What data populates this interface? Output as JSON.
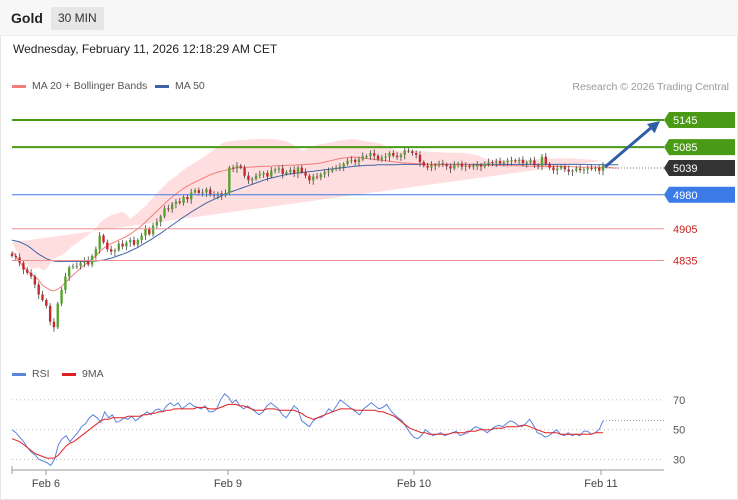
{
  "header": {
    "symbol": "Gold",
    "interval": "30 MIN"
  },
  "timestamp": "Wednesday, February 11, 2026 12:18:29 AM CET",
  "legend": {
    "ma20_label": "MA 20 + Bollinger Bands",
    "ma50_label": "MA 50",
    "credit": "Research © 2026 Trading Central",
    "rsi_label": "RSI",
    "rsi_ma_label": "9MA"
  },
  "colors": {
    "bull": "#56a22e",
    "bear": "#c8262d",
    "ma20": "#f47c7c",
    "ma50": "#3e64a8",
    "band": "#fdd3d3",
    "resistance": "#4a9a16",
    "support": "#3b7be8",
    "support_red": "#f08f8f",
    "current": "#333333",
    "rsi": "#5b84e0",
    "rsi_ma": "#e02020",
    "arrow": "#2f5fa6"
  },
  "chart_data": [
    {
      "type": "candlestick",
      "title": "",
      "x_ticks": [
        "Feb 6",
        "Feb 9",
        "Feb 10",
        "Feb 11"
      ],
      "ylim": [
        4620,
        5200
      ],
      "levels": [
        {
          "label": "5145",
          "value": 5145,
          "kind": "resistance"
        },
        {
          "label": "5085",
          "value": 5085,
          "kind": "resistance"
        },
        {
          "label": "5039",
          "value": 5039,
          "kind": "current"
        },
        {
          "label": "4980",
          "value": 4980,
          "kind": "support"
        },
        {
          "label": "4905",
          "value": 4905,
          "kind": "support_red"
        },
        {
          "label": "4835",
          "value": 4835,
          "kind": "support_red"
        }
      ],
      "forecast_arrow": {
        "from": 5039,
        "to": 5145
      },
      "close": [
        4845,
        4842,
        4830,
        4815,
        4808,
        4800,
        4782,
        4760,
        4748,
        4735,
        4700,
        4688,
        4740,
        4770,
        4800,
        4820,
        4822,
        4823,
        4830,
        4836,
        4826,
        4845,
        4860,
        4890,
        4875,
        4860,
        4855,
        4858,
        4872,
        4866,
        4875,
        4880,
        4870,
        4880,
        4890,
        4905,
        4893,
        4912,
        4920,
        4932,
        4950,
        4948,
        4960,
        4965,
        4962,
        4975,
        4970,
        4985,
        4990,
        4984,
        4985,
        4992,
        4980,
        4978,
        4983,
        4978,
        4984,
        5040,
        5038,
        5044,
        5040,
        5022,
        5012,
        5015,
        5022,
        5025,
        5028,
        5020,
        5033,
        5036,
        5038,
        5026,
        5030,
        5035,
        5027,
        5040,
        5030,
        5022,
        5012,
        5020,
        5018,
        5025,
        5030,
        5032,
        5038,
        5040,
        5042,
        5048,
        5055,
        5057,
        5052,
        5058,
        5065,
        5065,
        5072,
        5066,
        5058,
        5062,
        5064,
        5072,
        5066,
        5063,
        5068,
        5078,
        5076,
        5072,
        5068,
        5052,
        5044,
        5040,
        5046,
        5044,
        5049,
        5047,
        5043,
        5038,
        5046,
        5049,
        5042,
        5044,
        5041,
        5043,
        5046,
        5042,
        5048,
        5052,
        5051,
        5054,
        5049,
        5052,
        5055,
        5056,
        5054,
        5057,
        5050,
        5051,
        5056,
        5045,
        5044,
        5064,
        5048,
        5040,
        5034,
        5038,
        5042,
        5036,
        5031,
        5033,
        5038,
        5034,
        5036,
        5039,
        5037,
        5039,
        5033,
        5044
      ],
      "ma20": [
        4855,
        4845,
        4832,
        4822,
        4812,
        4805,
        4800,
        4792,
        4780,
        4775,
        4770,
        4768,
        4772,
        4778,
        4786,
        4795,
        4803,
        4810,
        4818,
        4825,
        4832,
        4838,
        4846,
        4855,
        4862,
        4868,
        4872,
        4876,
        4880,
        4884,
        4888,
        4893,
        4899,
        4905,
        4912,
        4920,
        4928,
        4936,
        4944,
        4952,
        4960,
        4968,
        4975,
        4982,
        4988,
        4994,
        4999,
        5004,
        5008,
        5012,
        5016,
        5020,
        5024,
        5027,
        5030,
        5032,
        5034,
        5036,
        5038,
        5040,
        5040,
        5040,
        5041,
        5041,
        5042,
        5042,
        5043,
        5043,
        5043,
        5044,
        5044,
        5044,
        5045,
        5045,
        5045,
        5046,
        5046,
        5047,
        5047,
        5048,
        5049,
        5050,
        5052,
        5054,
        5056,
        5058,
        5060,
        5061,
        5062,
        5063,
        5063,
        5062,
        5061,
        5060,
        5059,
        5058,
        5057,
        5056,
        5055,
        5054,
        5053,
        5052,
        5051,
        5050,
        5050,
        5049,
        5049,
        5048,
        5048,
        5047,
        5047,
        5047,
        5047,
        5046,
        5046,
        5046,
        5046,
        5046,
        5046,
        5046,
        5046,
        5045,
        5045,
        5045,
        5045,
        5045,
        5045,
        5045,
        5044,
        5044,
        5044,
        5044,
        5044,
        5044,
        5044,
        5043,
        5043,
        5043,
        5043,
        5043,
        5043,
        5042,
        5042,
        5042,
        5042,
        5042,
        5042,
        5042,
        5041,
        5041,
        5041,
        5041,
        5041,
        5041,
        5040,
        5040,
        5040,
        5040,
        5039,
        5039
      ],
      "ma50": [
        4880,
        4878,
        4876,
        4872,
        4868,
        4862,
        4855,
        4849,
        4844,
        4839,
        4836,
        4834,
        4833,
        4833,
        4833,
        4833,
        4833,
        4833,
        4833,
        4833,
        4833,
        4834,
        4834,
        4835,
        4836,
        4838,
        4840,
        4843,
        4846,
        4849,
        4852,
        4856,
        4860,
        4864,
        4869,
        4874,
        4879,
        4884,
        4890,
        4895,
        4901,
        4907,
        4913,
        4919,
        4925,
        4931,
        4936,
        4942,
        4947,
        4952,
        4957,
        4962,
        4966,
        4970,
        4974,
        4978,
        4982,
        4985,
        4988,
        4991,
        4994,
        4997,
        5000,
        5003,
        5006,
        5009,
        5012,
        5015,
        5017,
        5019,
        5021,
        5023,
        5025,
        5026,
        5027,
        5028,
        5029,
        5030,
        5031,
        5032,
        5033,
        5034,
        5035,
        5036,
        5037,
        5038,
        5039,
        5040,
        5041,
        5042,
        5043,
        5044,
        5044,
        5045,
        5045,
        5045,
        5046,
        5046,
        5046,
        5046,
        5046,
        5046,
        5047,
        5047,
        5047,
        5047,
        5047,
        5047,
        5047,
        5047,
        5047,
        5047,
        5047,
        5047,
        5047,
        5047,
        5047,
        5047,
        5047,
        5047,
        5047,
        5047,
        5047,
        5047,
        5047,
        5047,
        5047,
        5047,
        5047,
        5047,
        5047,
        5047,
        5047,
        5047,
        5047,
        5047,
        5047,
        5047,
        5047,
        5047,
        5047,
        5047,
        5047,
        5047,
        5047,
        5047,
        5047,
        5047,
        5047,
        5047,
        5047,
        5047,
        5046,
        5046,
        5046,
        5046,
        5046,
        5046,
        5046,
        5046
      ]
    },
    {
      "type": "line",
      "title": "",
      "series": [
        {
          "name": "RSI"
        },
        {
          "name": "9MA"
        }
      ],
      "ylim": [
        25,
        80
      ],
      "y_ticks": [
        30,
        50,
        70
      ],
      "rsi": [
        50,
        48,
        45,
        42,
        38,
        35,
        33,
        30,
        29,
        28,
        26,
        30,
        40,
        44,
        46,
        42,
        45,
        48,
        52,
        54,
        58,
        60,
        58,
        55,
        62,
        58,
        60,
        55,
        56,
        58,
        57,
        59,
        56,
        58,
        60,
        62,
        60,
        63,
        64,
        62,
        66,
        68,
        66,
        68,
        64,
        66,
        68,
        66,
        65,
        64,
        66,
        62,
        62,
        64,
        70,
        74,
        72,
        68,
        70,
        66,
        64,
        66,
        64,
        62,
        60,
        62,
        66,
        68,
        66,
        64,
        60,
        58,
        62,
        66,
        64,
        56,
        54,
        52,
        56,
        58,
        58,
        60,
        64,
        62,
        66,
        70,
        68,
        66,
        64,
        62,
        60,
        64,
        66,
        68,
        66,
        64,
        65,
        67,
        63,
        60,
        58,
        56,
        52,
        48,
        45,
        44,
        46,
        50,
        48,
        46,
        47,
        48,
        46,
        47,
        48,
        49,
        46,
        47,
        48,
        50,
        52,
        51,
        50,
        48,
        50,
        52,
        53,
        52,
        54,
        56,
        55,
        53,
        52,
        54,
        57,
        53,
        48,
        47,
        45,
        46,
        48,
        50,
        47,
        46,
        48,
        46,
        47,
        46,
        49,
        49,
        47,
        48,
        50,
        56
      ],
      "rsi_ma": [
        44,
        43,
        42,
        40,
        38,
        36,
        34,
        33,
        32,
        31,
        31,
        31,
        33,
        36,
        39,
        41,
        42,
        44,
        46,
        48,
        50,
        52,
        54,
        56,
        57,
        57,
        58,
        58,
        58,
        58,
        59,
        59,
        59,
        59,
        60,
        60,
        61,
        61,
        62,
        62,
        63,
        63,
        64,
        64,
        64,
        64,
        64,
        64,
        65,
        65,
        65,
        64,
        64,
        64,
        65,
        66,
        67,
        67,
        67,
        66,
        66,
        65,
        64,
        63,
        63,
        63,
        64,
        64,
        64,
        63,
        63,
        63,
        63,
        63,
        62,
        61,
        59,
        58,
        57,
        58,
        59,
        60,
        61,
        62,
        63,
        64,
        64,
        64,
        64,
        63,
        63,
        63,
        63,
        63,
        63,
        62,
        62,
        61,
        60,
        59,
        57,
        55,
        53,
        51,
        50,
        49,
        48,
        48,
        47,
        47,
        47,
        47,
        47,
        47,
        48,
        48,
        48,
        48,
        49,
        49,
        49,
        50,
        50,
        50,
        50,
        51,
        51,
        51,
        52,
        52,
        52,
        52,
        53,
        53,
        52,
        51,
        50,
        49,
        48,
        48,
        48,
        48,
        47,
        47,
        47,
        47,
        47,
        47,
        47,
        47,
        47,
        48,
        48,
        48
      ]
    }
  ]
}
